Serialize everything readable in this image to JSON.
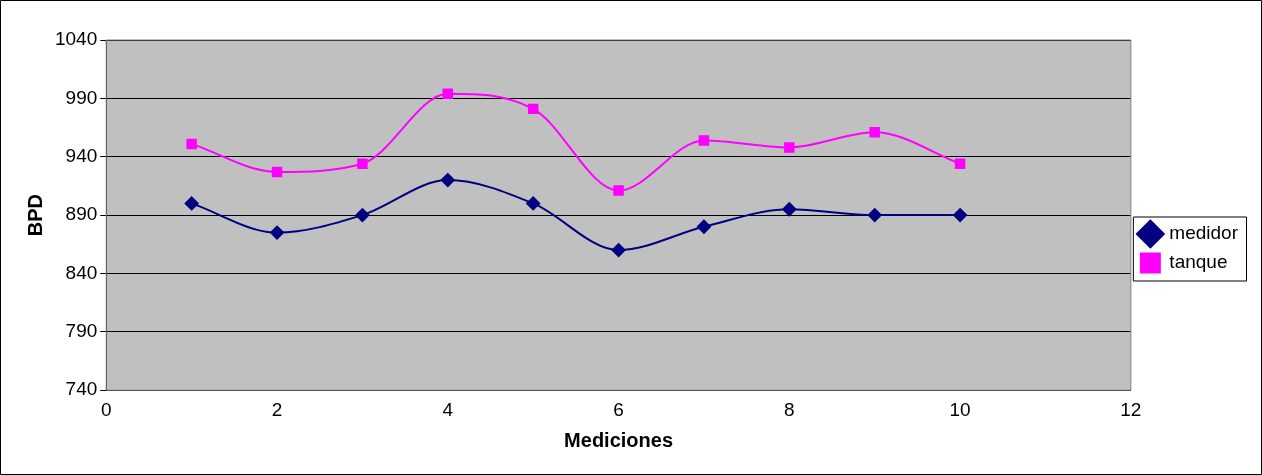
{
  "chart_data": {
    "type": "line",
    "xlabel": "Mediciones",
    "ylabel": "BPD",
    "xlim": [
      0,
      12
    ],
    "xticks": [
      0,
      2,
      4,
      6,
      8,
      10,
      12
    ],
    "ylim": [
      740,
      1040
    ],
    "yticks": [
      740,
      790,
      840,
      890,
      940,
      990,
      1040
    ],
    "grid": "y",
    "legend": "right",
    "line_style": "solid",
    "x": [
      1,
      2,
      3,
      4,
      5,
      6,
      7,
      8,
      9,
      10
    ],
    "series": [
      {
        "name": "medidor",
        "color": "#000080",
        "marker": "diamond",
        "values": [
          900,
          875,
          890,
          920,
          900,
          860,
          880,
          895,
          890,
          890
        ]
      },
      {
        "name": "tanque",
        "color": "#ff00ff",
        "marker": "square",
        "values": [
          951,
          927,
          934,
          994,
          981,
          911,
          954,
          948,
          961,
          934
        ]
      }
    ]
  }
}
